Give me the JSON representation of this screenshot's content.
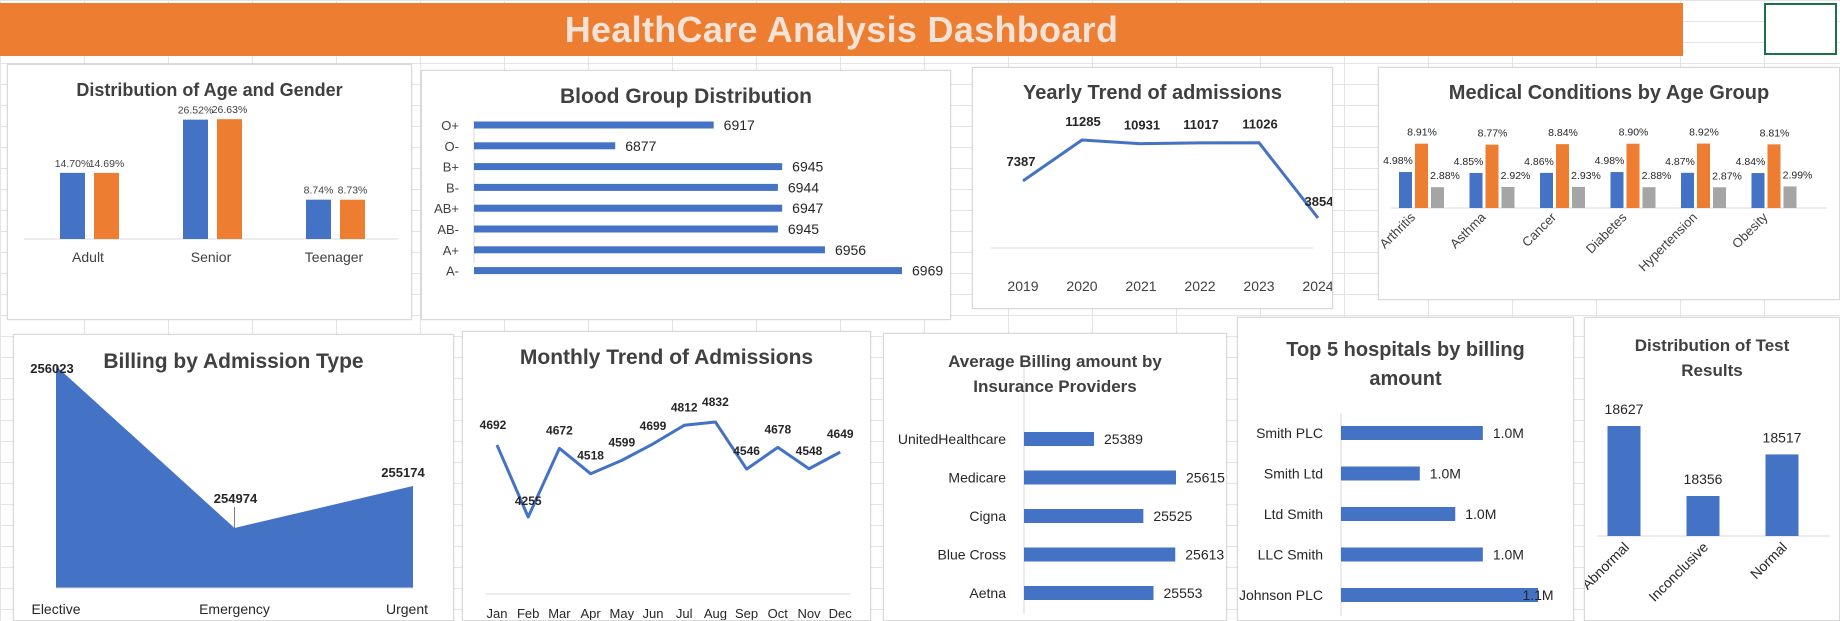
{
  "dashboard": {
    "title": "HealthCare Analysis Dashboard"
  },
  "colors": {
    "blue": "#4472C4",
    "orange": "#ED7D31",
    "gray": "#A5A5A5",
    "banner": "#ED7D31",
    "title_text": "#F4E2D6"
  },
  "chart_data": [
    {
      "id": "age_gender",
      "type": "bar",
      "title": "Distribution of Age and Gender",
      "categories": [
        "Adult",
        "Senior",
        "Teenager"
      ],
      "series": [
        {
          "values": [
            14.7,
            26.52,
            8.74
          ],
          "labels": [
            "14.70%",
            "26.52%",
            "8.74%"
          ]
        },
        {
          "values": [
            14.69,
            26.63,
            8.73
          ],
          "labels": [
            "14.69%",
            "26.63%",
            "8.73%"
          ]
        }
      ]
    },
    {
      "id": "blood_group",
      "type": "bar",
      "orientation": "horizontal",
      "title": "Blood Group Distribution",
      "categories": [
        "O+",
        "O-",
        "B+",
        "B-",
        "AB+",
        "AB-",
        "A+",
        "A-"
      ],
      "values": [
        6917,
        6877,
        6945,
        6944,
        6947,
        6945,
        6956,
        6969
      ]
    },
    {
      "id": "yearly_trend",
      "type": "line",
      "title": "Yearly Trend of admissions",
      "categories": [
        "2019",
        "2020",
        "2021",
        "2022",
        "2023",
        "2024"
      ],
      "values": [
        7387,
        11285,
        10931,
        11017,
        11026,
        3854
      ]
    },
    {
      "id": "medical_conditions",
      "type": "bar",
      "title": "Medical Conditions by Age Group",
      "categories": [
        "Arthritis",
        "Asthma",
        "Cancer",
        "Diabetes",
        "Hypertension",
        "Obesity"
      ],
      "series": [
        {
          "values": [
            4.98,
            4.85,
            4.86,
            4.98,
            4.87,
            4.84
          ],
          "labels": [
            "4.98%",
            "4.85%",
            "4.86%",
            "4.98%",
            "4.87%",
            "4.84%"
          ]
        },
        {
          "values": [
            8.91,
            8.77,
            8.84,
            8.9,
            8.92,
            8.81
          ],
          "labels": [
            "8.91%",
            "8.77%",
            "8.84%",
            "8.90%",
            "8.92%",
            "8.81%"
          ]
        },
        {
          "values": [
            2.88,
            2.92,
            2.93,
            2.88,
            2.87,
            2.99
          ],
          "labels": [
            "2.88%",
            "2.92%",
            "2.93%",
            "2.88%",
            "2.87%",
            "2.99%"
          ]
        }
      ]
    },
    {
      "id": "billing_admission",
      "type": "area",
      "title": "Billing by Admission Type",
      "categories": [
        "Elective",
        "Emergency",
        "Urgent"
      ],
      "values": [
        256023,
        254974,
        255174
      ]
    },
    {
      "id": "monthly_trend",
      "type": "line",
      "title": "Monthly Trend of Admissions",
      "categories": [
        "Jan",
        "Feb",
        "Mar",
        "Apr",
        "May",
        "Jun",
        "Jul",
        "Aug",
        "Sep",
        "Oct",
        "Nov",
        "Dec"
      ],
      "values": [
        4692,
        4255,
        4672,
        4518,
        4599,
        4699,
        4812,
        4832,
        4546,
        4678,
        4548,
        4649
      ]
    },
    {
      "id": "insurance_billing",
      "type": "bar",
      "orientation": "horizontal",
      "title": "Average Billing amount by Insurance Providers",
      "categories": [
        "UnitedHealthcare",
        "Medicare",
        "Cigna",
        "Blue Cross",
        "Aetna"
      ],
      "values": [
        25389,
        25615,
        25525,
        25613,
        25553
      ]
    },
    {
      "id": "top_hospitals",
      "type": "bar",
      "orientation": "horizontal",
      "title": "Top 5 hospitals by billing amount",
      "categories": [
        "Smith PLC",
        "Smith Ltd",
        "Ltd Smith",
        "LLC Smith",
        "Johnson PLC"
      ],
      "values": [
        1.0,
        1.0,
        1.0,
        1.0,
        1.1
      ],
      "bar_fraction": [
        0.72,
        0.4,
        0.58,
        0.72,
        1.0
      ],
      "labels": [
        "1.0M",
        "1.0M",
        "1.0M",
        "1.0M",
        "1.1M"
      ]
    },
    {
      "id": "test_results",
      "type": "bar",
      "title": "Distribution of Test Results",
      "categories": [
        "Abnormal",
        "Inconclusive",
        "Normal"
      ],
      "values": [
        18627,
        18356,
        18517
      ]
    }
  ]
}
